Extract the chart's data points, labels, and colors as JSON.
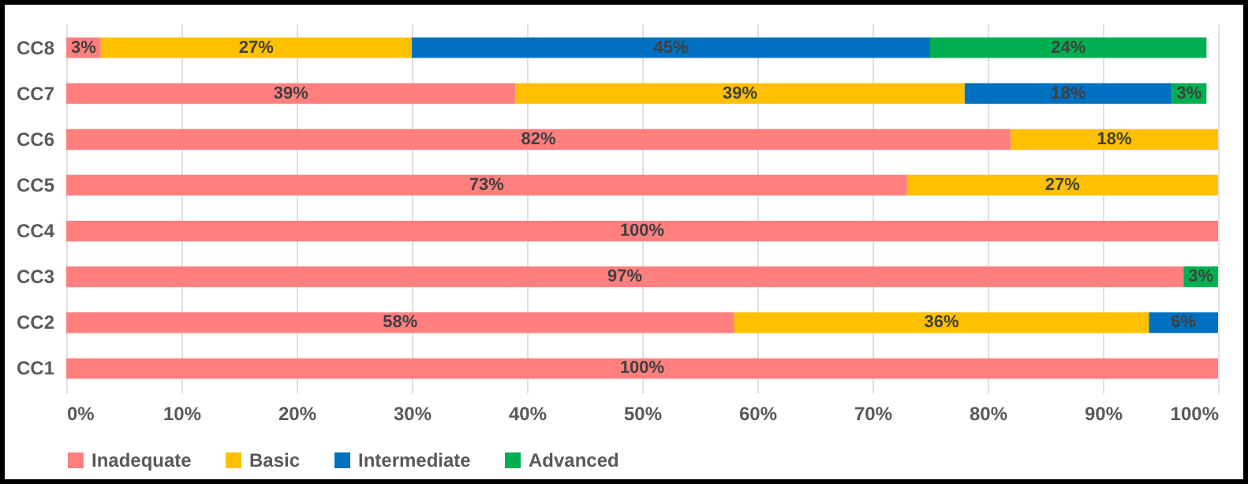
{
  "chart_data": {
    "type": "bar",
    "orientation": "horizontal",
    "stacked": true,
    "categories": [
      "CC8",
      "CC7",
      "CC6",
      "CC5",
      "CC4",
      "CC3",
      "CC2",
      "CC1"
    ],
    "series": [
      {
        "name": "Inadequate",
        "color": "#ff7f7f",
        "values": [
          3,
          39,
          82,
          73,
          100,
          97,
          58,
          100
        ],
        "value_labels": [
          "3%",
          "39%",
          "82%",
          "73%",
          "100%",
          "97%",
          "58%",
          "100%"
        ]
      },
      {
        "name": "Basic",
        "color": "#ffc000",
        "values": [
          27,
          39,
          18,
          27,
          null,
          null,
          36,
          null
        ],
        "value_labels": [
          "27%",
          "39%",
          "18%",
          "27%",
          null,
          null,
          "36%",
          null
        ]
      },
      {
        "name": "Intermediate",
        "color": "#0070c0",
        "values": [
          45,
          18,
          null,
          null,
          null,
          null,
          6,
          null
        ],
        "value_labels": [
          "45%",
          "18%",
          null,
          null,
          null,
          null,
          "6%",
          null
        ]
      },
      {
        "name": "Advanced",
        "color": "#00b050",
        "values": [
          24,
          3,
          null,
          null,
          null,
          3,
          null,
          null
        ],
        "value_labels": [
          "24%",
          "3%",
          null,
          null,
          null,
          "3%",
          null,
          null
        ]
      }
    ],
    "xlim": [
      0,
      100
    ],
    "xticks": [
      {
        "value": 0,
        "label": "0%"
      },
      {
        "value": 10,
        "label": "10%"
      },
      {
        "value": 20,
        "label": "20%"
      },
      {
        "value": 30,
        "label": "30%"
      },
      {
        "value": 40,
        "label": "40%"
      },
      {
        "value": 50,
        "label": "50%"
      },
      {
        "value": 60,
        "label": "60%"
      },
      {
        "value": 70,
        "label": "70%"
      },
      {
        "value": 80,
        "label": "80%"
      },
      {
        "value": 90,
        "label": "90%"
      },
      {
        "value": 100,
        "label": "100%"
      }
    ],
    "grid": "x",
    "legend": "bottom"
  }
}
